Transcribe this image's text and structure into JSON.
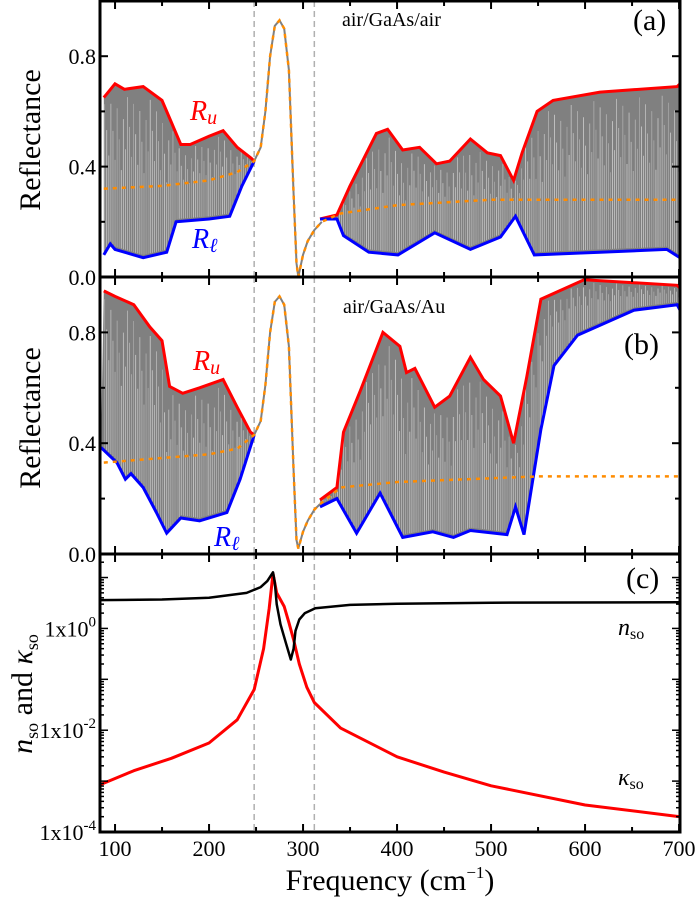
{
  "chart_data": {
    "type": "line",
    "xlabel": "Frequency (cm",
    "xlabel_sup": "−1",
    "xlabel_end": ")",
    "xlim": [
      84,
      701
    ],
    "xticks": [
      100,
      200,
      300,
      400,
      500,
      600,
      700
    ],
    "dashed_vlines": [
      248,
      312
    ],
    "colors": {
      "ru": "#ff0000",
      "rl": "#0000ff",
      "avg": "#ff8c00",
      "fill": "#808080",
      "n": "#000000",
      "kappa": "#ff0000",
      "vline": "#b0b0b0"
    },
    "panels": [
      {
        "tag": "(a)",
        "system": "air/GaAs/air",
        "ylabel": "Reflectance",
        "ylim": [
          0,
          1.0
        ],
        "yticks": [
          "0.0",
          "0.4",
          "0.8"
        ],
        "ytick_values": [
          0,
          0.4,
          0.8
        ],
        "ru_label": "R",
        "ru_sub": "u",
        "rl_label": "R",
        "rl_sub": "ℓ",
        "ru": [
          [
            88,
            0.65
          ],
          [
            100,
            0.7
          ],
          [
            110,
            0.68
          ],
          [
            130,
            0.69
          ],
          [
            150,
            0.64
          ],
          [
            160,
            0.56
          ],
          [
            170,
            0.48
          ],
          [
            180,
            0.48
          ],
          [
            200,
            0.51
          ],
          [
            215,
            0.53
          ],
          [
            230,
            0.47
          ],
          [
            245,
            0.43
          ],
          [
            248,
            0.42
          ]
        ],
        "rl": [
          [
            88,
            0.08
          ],
          [
            95,
            0.12
          ],
          [
            100,
            0.1
          ],
          [
            130,
            0.07
          ],
          [
            155,
            0.09
          ],
          [
            165,
            0.2
          ],
          [
            200,
            0.21
          ],
          [
            222,
            0.22
          ],
          [
            235,
            0.33
          ],
          [
            248,
            0.42
          ]
        ],
        "single": [
          [
            248,
            0.42
          ],
          [
            255,
            0.47
          ],
          [
            260,
            0.6
          ],
          [
            265,
            0.8
          ],
          [
            270,
            0.91
          ],
          [
            275,
            0.93
          ],
          [
            280,
            0.9
          ],
          [
            285,
            0.75
          ],
          [
            290,
            0.3
          ],
          [
            293,
            0.05
          ],
          [
            295,
            0.0
          ],
          [
            300,
            0.08
          ],
          [
            305,
            0.13
          ],
          [
            312,
            0.17
          ],
          [
            320,
            0.2
          ]
        ],
        "ru2": [
          [
            318,
            0.21
          ],
          [
            336,
            0.225
          ],
          [
            350,
            0.33
          ],
          [
            378,
            0.52
          ],
          [
            390,
            0.535
          ],
          [
            406,
            0.46
          ],
          [
            424,
            0.47
          ],
          [
            442,
            0.41
          ],
          [
            456,
            0.42
          ],
          [
            478,
            0.5
          ],
          [
            496,
            0.45
          ],
          [
            510,
            0.44
          ],
          [
            524,
            0.35
          ],
          [
            533,
            0.45
          ],
          [
            549,
            0.6
          ],
          [
            566,
            0.64
          ],
          [
            616,
            0.67
          ],
          [
            698,
            0.69
          ],
          [
            701,
            0.7
          ]
        ],
        "rl2": [
          [
            318,
            0.21
          ],
          [
            336,
            0.21
          ],
          [
            343,
            0.15
          ],
          [
            370,
            0.09
          ],
          [
            401,
            0.08
          ],
          [
            440,
            0.16
          ],
          [
            478,
            0.1
          ],
          [
            510,
            0.145
          ],
          [
            526,
            0.22
          ],
          [
            546,
            0.08
          ],
          [
            616,
            0.09
          ],
          [
            687,
            0.1
          ],
          [
            701,
            0.07
          ]
        ],
        "avg": [
          [
            88,
            0.32
          ],
          [
            150,
            0.33
          ],
          [
            200,
            0.35
          ],
          [
            230,
            0.38
          ],
          [
            248,
            0.42
          ]
        ],
        "avg2": [
          [
            320,
            0.2
          ],
          [
            340,
            0.23
          ],
          [
            400,
            0.26
          ],
          [
            500,
            0.28
          ],
          [
            701,
            0.28
          ]
        ]
      },
      {
        "tag": "(b)",
        "system": "air/GaAs/Au",
        "ylabel": "Reflectance",
        "ylim": [
          0,
          1.0
        ],
        "yticks": [
          "0.0",
          "0.4",
          "0.8"
        ],
        "ytick_values": [
          0,
          0.4,
          0.8
        ],
        "ru_label": "R",
        "ru_sub": "u",
        "rl_label": "R",
        "rl_sub": "ℓ",
        "ru": [
          [
            88,
            0.95
          ],
          [
            100,
            0.93
          ],
          [
            120,
            0.9
          ],
          [
            137,
            0.82
          ],
          [
            150,
            0.77
          ],
          [
            158,
            0.605
          ],
          [
            172,
            0.58
          ],
          [
            190,
            0.6
          ],
          [
            215,
            0.63
          ],
          [
            230,
            0.53
          ],
          [
            244,
            0.44
          ],
          [
            248,
            0.43
          ]
        ],
        "rl": [
          [
            85,
            0.385
          ],
          [
            102,
            0.33
          ],
          [
            111,
            0.27
          ],
          [
            117,
            0.29
          ],
          [
            130,
            0.24
          ],
          [
            144,
            0.15
          ],
          [
            155,
            0.075
          ],
          [
            170,
            0.13
          ],
          [
            190,
            0.12
          ],
          [
            219,
            0.15
          ],
          [
            233,
            0.27
          ],
          [
            248,
            0.43
          ]
        ],
        "single": [
          [
            248,
            0.43
          ],
          [
            255,
            0.48
          ],
          [
            260,
            0.61
          ],
          [
            265,
            0.8
          ],
          [
            270,
            0.91
          ],
          [
            275,
            0.93
          ],
          [
            280,
            0.9
          ],
          [
            285,
            0.75
          ],
          [
            290,
            0.3
          ],
          [
            293,
            0.05
          ],
          [
            295,
            0.02
          ],
          [
            300,
            0.08
          ],
          [
            305,
            0.12
          ],
          [
            312,
            0.16
          ],
          [
            318,
            0.18
          ]
        ],
        "ru2": [
          [
            318,
            0.195
          ],
          [
            336,
            0.24
          ],
          [
            343,
            0.44
          ],
          [
            361,
            0.59
          ],
          [
            385,
            0.8
          ],
          [
            403,
            0.75
          ],
          [
            410,
            0.655
          ],
          [
            419,
            0.67
          ],
          [
            440,
            0.53
          ],
          [
            456,
            0.57
          ],
          [
            478,
            0.71
          ],
          [
            492,
            0.63
          ],
          [
            510,
            0.57
          ],
          [
            524,
            0.4
          ],
          [
            538,
            0.64
          ],
          [
            553,
            0.92
          ],
          [
            599,
            0.99
          ],
          [
            698,
            0.97
          ],
          [
            701,
            0.96
          ]
        ],
        "rl2": [
          [
            318,
            0.17
          ],
          [
            336,
            0.2
          ],
          [
            357,
            0.075
          ],
          [
            382,
            0.22
          ],
          [
            406,
            0.06
          ],
          [
            438,
            0.08
          ],
          [
            460,
            0.06
          ],
          [
            478,
            0.085
          ],
          [
            517,
            0.07
          ],
          [
            526,
            0.17
          ],
          [
            535,
            0.07
          ],
          [
            553,
            0.45
          ],
          [
            567,
            0.68
          ],
          [
            592,
            0.79
          ],
          [
            652,
            0.88
          ],
          [
            698,
            0.9
          ],
          [
            701,
            0.88
          ]
        ],
        "avg": [
          [
            88,
            0.33
          ],
          [
            200,
            0.36
          ],
          [
            230,
            0.38
          ],
          [
            248,
            0.43
          ]
        ],
        "avg2": [
          [
            318,
            0.18
          ],
          [
            340,
            0.24
          ],
          [
            400,
            0.26
          ],
          [
            550,
            0.28
          ],
          [
            701,
            0.28
          ]
        ]
      },
      {
        "tag": "(c)",
        "ylabel_n": "n",
        "ylabel_n_sub": "so",
        "ylabel_mid": " and ",
        "ylabel_k": "κ",
        "ylabel_k_sub": "so",
        "yscale": "log",
        "ylim": [
          0.0001,
          29
        ],
        "yticks": [
          {
            "base": "1x10",
            "exp": "0",
            "value": 1
          },
          {
            "base": "1x10",
            "exp": "-2",
            "value": 0.01
          },
          {
            "base": "1x10",
            "exp": "-4",
            "value": 0.0001
          }
        ],
        "n_label": "n",
        "n_sub": "so",
        "k_label": "κ",
        "k_sub": "so",
        "n": [
          [
            84,
            3.6
          ],
          [
            150,
            3.7
          ],
          [
            200,
            4.0
          ],
          [
            240,
            5.0
          ],
          [
            255,
            6.5
          ],
          [
            262,
            8.5
          ],
          [
            268,
            12.7
          ],
          [
            270,
            8
          ],
          [
            272,
            3
          ],
          [
            276,
            1.2
          ],
          [
            282,
            0.5
          ],
          [
            287,
            0.245
          ],
          [
            290,
            0.4
          ],
          [
            292,
            0.9
          ],
          [
            296,
            1.5
          ],
          [
            302,
            2.0
          ],
          [
            313,
            2.5
          ],
          [
            350,
            2.9
          ],
          [
            400,
            3.05
          ],
          [
            500,
            3.2
          ],
          [
            701,
            3.26
          ]
        ],
        "kappa": [
          [
            84,
            0.00085
          ],
          [
            120,
            0.0016
          ],
          [
            160,
            0.0028
          ],
          [
            200,
            0.0056
          ],
          [
            230,
            0.016
          ],
          [
            248,
            0.063
          ],
          [
            258,
            0.4
          ],
          [
            264,
            2.5
          ],
          [
            268,
            12
          ],
          [
            272,
            5
          ],
          [
            280,
            2.7
          ],
          [
            285,
            1.3
          ],
          [
            290,
            0.6
          ],
          [
            296,
            0.2
          ],
          [
            304,
            0.07
          ],
          [
            312,
            0.035
          ],
          [
            340,
            0.011
          ],
          [
            400,
            0.003
          ],
          [
            450,
            0.0015
          ],
          [
            500,
            0.00081
          ],
          [
            600,
            0.00034
          ],
          [
            701,
            0.0002
          ]
        ]
      }
    ]
  }
}
